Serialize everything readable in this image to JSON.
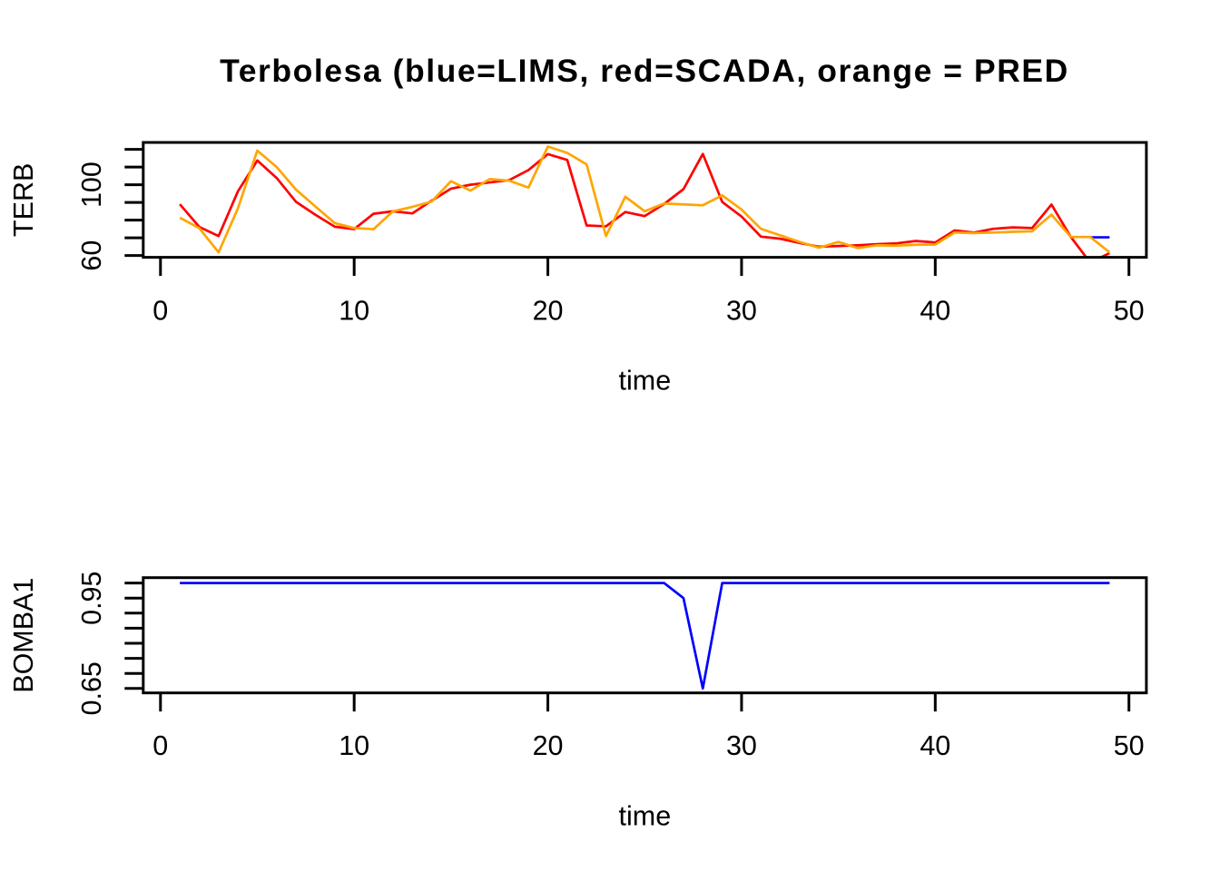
{
  "title": "Terbolesa (blue=LIMS, red=SCADA, orange = PRED",
  "colors": {
    "lims": "#0000FF",
    "scada": "#FF0000",
    "pred": "#FFA500",
    "axis": "#000000",
    "background": "#FFFFFF"
  },
  "chart_data": [
    {
      "type": "line",
      "title": "Terbolesa (blue=LIMS, red=SCADA, orange = PRED",
      "xlabel": "time",
      "ylabel": "TERB",
      "grid": false,
      "legend_position": "none (encoded in title)",
      "xlim": [
        -0.89,
        50.9
      ],
      "ylim": [
        59.0,
        123.9
      ],
      "xticks": {
        "values": [
          0,
          10,
          20,
          30,
          40,
          50
        ],
        "labels": [
          "0",
          "10",
          "20",
          "30",
          "40",
          "50"
        ]
      },
      "yticks": {
        "values": [
          60,
          70,
          80,
          90,
          100,
          110,
          120
        ],
        "labels": [
          "60",
          "",
          "",
          "",
          "100",
          "",
          ""
        ]
      },
      "x": [
        1,
        2,
        3,
        4,
        5,
        6,
        7,
        8,
        9,
        10,
        11,
        12,
        13,
        14,
        15,
        16,
        17,
        18,
        19,
        20,
        21,
        22,
        23,
        24,
        25,
        26,
        27,
        28,
        29,
        30,
        31,
        32,
        33,
        34,
        35,
        36,
        37,
        38,
        39,
        40,
        41,
        42,
        43,
        44,
        45,
        46,
        47,
        48,
        49
      ],
      "series": [
        {
          "name": "LIMS",
          "color": "#0000FF",
          "values": [
            null,
            null,
            null,
            null,
            null,
            null,
            null,
            null,
            null,
            null,
            null,
            null,
            null,
            null,
            null,
            null,
            null,
            null,
            null,
            null,
            null,
            null,
            null,
            null,
            null,
            null,
            null,
            null,
            null,
            null,
            null,
            null,
            null,
            null,
            null,
            null,
            null,
            null,
            null,
            null,
            null,
            null,
            null,
            null,
            null,
            null,
            null,
            70.3,
            70.3
          ]
        },
        {
          "name": "SCADA",
          "color": "#FF0000",
          "values": [
            89.0,
            76.2,
            71.0,
            96.3,
            113.7,
            103.8,
            90.3,
            83.0,
            76.3,
            74.9,
            83.6,
            85.0,
            83.8,
            91.0,
            97.8,
            100.0,
            101.3,
            102.6,
            108.3,
            117.3,
            114.0,
            77.0,
            76.5,
            84.6,
            82.3,
            89.1,
            97.5,
            117.4,
            90.3,
            82.0,
            70.7,
            69.5,
            67.1,
            65.0,
            65.4,
            65.8,
            66.4,
            66.9,
            68.2,
            67.4,
            74.2,
            73.0,
            75.1,
            75.9,
            75.5,
            88.8,
            70.5,
            56.0,
            61.4
          ]
        },
        {
          "name": "PRED",
          "color": "#FFA500",
          "values": [
            81.4,
            75.5,
            61.8,
            86.7,
            119.3,
            110.0,
            97.2,
            87.7,
            78.3,
            75.5,
            74.9,
            85.0,
            87.5,
            90.5,
            102.0,
            96.7,
            103.2,
            102.3,
            98.4,
            121.6,
            118.0,
            111.5,
            71.0,
            93.2,
            85.0,
            89.4,
            88.9,
            88.4,
            94.0,
            86.0,
            75.1,
            71.4,
            67.7,
            64.4,
            67.7,
            64.2,
            65.8,
            65.6,
            66.1,
            66.2,
            73.0,
            72.7,
            73.0,
            73.4,
            73.7,
            83.1,
            70.5,
            70.5,
            61.8
          ]
        }
      ]
    },
    {
      "type": "line",
      "title": "",
      "xlabel": "time",
      "ylabel": "BOMBA1",
      "grid": false,
      "legend_position": "none",
      "xlim": [
        -0.89,
        50.9
      ],
      "ylim": [
        0.6352,
        1.0178
      ],
      "xticks": {
        "values": [
          0,
          10,
          20,
          30,
          40,
          50
        ],
        "labels": [
          "0",
          "10",
          "20",
          "30",
          "40",
          "50"
        ]
      },
      "yticks": {
        "values": [
          0.65,
          0.7,
          0.75,
          0.8,
          0.85,
          0.9,
          0.95,
          1.0
        ],
        "labels": [
          "0.65",
          "",
          "",
          "",
          "",
          "",
          "0.95",
          ""
        ]
      },
      "x": [
        1,
        2,
        3,
        4,
        5,
        6,
        7,
        8,
        9,
        10,
        11,
        12,
        13,
        14,
        15,
        16,
        17,
        18,
        19,
        20,
        21,
        22,
        23,
        24,
        25,
        26,
        27,
        28,
        29,
        30,
        31,
        32,
        33,
        34,
        35,
        36,
        37,
        38,
        39,
        40,
        41,
        42,
        43,
        44,
        45,
        46,
        47,
        48,
        49
      ],
      "series": [
        {
          "name": "BOMBA1",
          "color": "#0000FF",
          "values": [
            1.0,
            1.0,
            1.0,
            1.0,
            1.0,
            1.0,
            1.0,
            1.0,
            1.0,
            1.0,
            1.0,
            1.0,
            1.0,
            1.0,
            1.0,
            1.0,
            1.0,
            1.0,
            1.0,
            1.0,
            1.0,
            1.0,
            1.0,
            1.0,
            1.0,
            1.0,
            0.95,
            0.65,
            1.0,
            1.0,
            1.0,
            1.0,
            1.0,
            1.0,
            1.0,
            1.0,
            1.0,
            1.0,
            1.0,
            1.0,
            1.0,
            1.0,
            1.0,
            1.0,
            1.0,
            1.0,
            1.0,
            1.0,
            1.0
          ]
        }
      ]
    }
  ]
}
